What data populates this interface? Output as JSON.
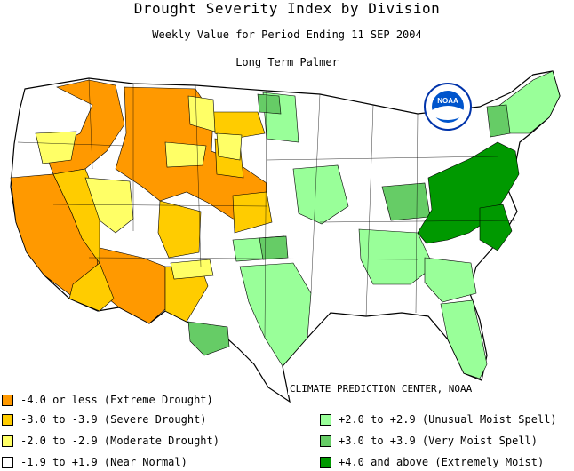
{
  "header": {
    "title": "Drought Severity Index by Division",
    "subtitle": "Weekly Value for Period Ending 11 SEP 2004",
    "method": "Long Term Palmer"
  },
  "map": {
    "logo_text": "NOAA",
    "credit": "CLIMATE PREDICTION CENTER, NOAA",
    "colors": {
      "extreme_drought": "#ff9900",
      "severe_drought": "#ffcc00",
      "moderate_drought": "#ffff66",
      "near_normal": "#ffffff",
      "unusual_moist": "#99ff99",
      "very_moist": "#66cc66",
      "extremely_moist": "#009900",
      "boundary": "#000000"
    }
  },
  "legend": {
    "left": [
      {
        "label": "-4.0 or less (Extreme Drought)",
        "color": "#ff9900"
      },
      {
        "label": "-3.0 to -3.9 (Severe Drought)",
        "color": "#ffcc00"
      },
      {
        "label": "-2.0 to -2.9 (Moderate Drought)",
        "color": "#ffff66"
      },
      {
        "label": "-1.9 to +1.9 (Near Normal)",
        "color": "#ffffff"
      }
    ],
    "right": [
      {
        "label": "+2.0 to +2.9 (Unusual Moist Spell)",
        "color": "#99ff99"
      },
      {
        "label": "+3.0 to +3.9 (Very Moist Spell)",
        "color": "#66cc66"
      },
      {
        "label": "+4.0 and above (Extremely Moist)",
        "color": "#009900"
      }
    ]
  }
}
